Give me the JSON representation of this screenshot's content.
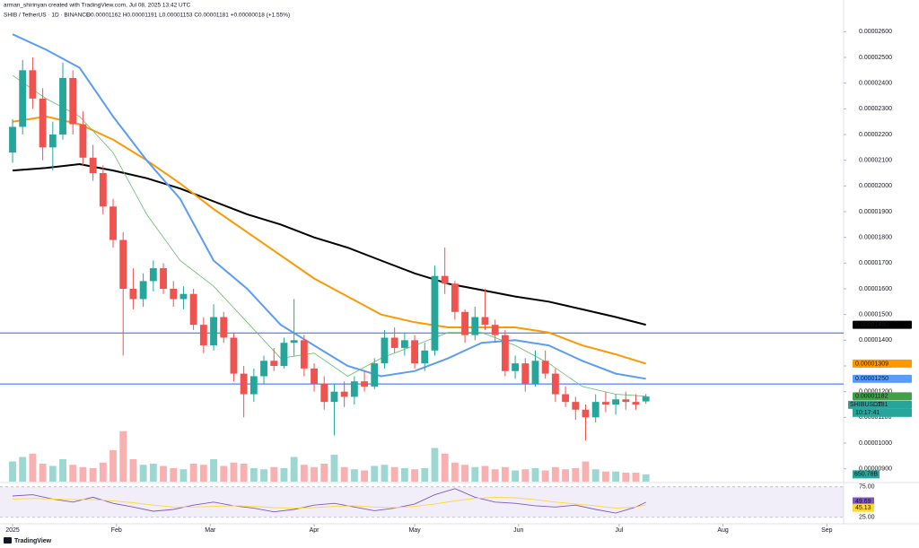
{
  "chart_data": {
    "type": "candlestick",
    "author_line": "arman_shirinyan created with TradingView.com, Jul 08, 2025 13:42 UTC",
    "symbol_line": "SHIB / TetherUS · 1D · BINANCE",
    "ohlc_line": "O0.00001162 H0.00001191 L0.00001153 C0.00001181 +0.00000018 (+1.55%)",
    "footer": "TradingView",
    "up_color": "#26a69a",
    "down_color": "#ef5350",
    "xlim": [
      -3.75,
      248
    ],
    "xticks": [
      {
        "value": 0,
        "label": "2025"
      },
      {
        "value": 31,
        "label": "Feb"
      },
      {
        "value": 59,
        "label": "Mar"
      },
      {
        "value": 90,
        "label": "Apr"
      },
      {
        "value": 120,
        "label": "May"
      },
      {
        "value": 151,
        "label": "Jun"
      },
      {
        "value": 181,
        "label": "Jul"
      },
      {
        "value": 212,
        "label": "Aug"
      },
      {
        "value": 243,
        "label": "Sep"
      }
    ],
    "ylim": [
      8.5e-06,
      2.65e-05
    ],
    "yticks": [
      {
        "value": 9e-06,
        "label": "0.00000900"
      },
      {
        "value": 1e-05,
        "label": "0.00001000"
      },
      {
        "value": 1.1e-05,
        "label": "0.00001100"
      },
      {
        "value": 1.2e-05,
        "label": "0.00001200"
      },
      {
        "value": 1.3e-05,
        "label": "0.00001300"
      },
      {
        "value": 1.4e-05,
        "label": "0.00001400"
      },
      {
        "value": 1.5e-05,
        "label": "0.00001500"
      },
      {
        "value": 1.6e-05,
        "label": "0.00001600"
      },
      {
        "value": 1.7e-05,
        "label": "0.00001700"
      },
      {
        "value": 1.8e-05,
        "label": "0.00001800"
      },
      {
        "value": 1.9e-05,
        "label": "0.00001900"
      },
      {
        "value": 2e-05,
        "label": "0.00002000"
      },
      {
        "value": 2.1e-05,
        "label": "0.00002100"
      },
      {
        "value": 2.2e-05,
        "label": "0.00002200"
      },
      {
        "value": 2.3e-05,
        "label": "0.00002300"
      },
      {
        "value": 2.4e-05,
        "label": "0.00002400"
      },
      {
        "value": 2.5e-05,
        "label": "0.00002500"
      },
      {
        "value": 2.6e-05,
        "label": "0.00002600"
      }
    ],
    "x": [
      0,
      3,
      6,
      9,
      12,
      15,
      18,
      21,
      24,
      27,
      30,
      33,
      36,
      39,
      42,
      45,
      48,
      51,
      54,
      57,
      60,
      63,
      66,
      69,
      72,
      75,
      78,
      81,
      84,
      87,
      90,
      93,
      96,
      99,
      102,
      105,
      108,
      111,
      114,
      117,
      120,
      123,
      126,
      129,
      132,
      135,
      138,
      141,
      144,
      147,
      150,
      153,
      156,
      159,
      162,
      165,
      168,
      171,
      174,
      177,
      180,
      183,
      186,
      189
    ],
    "open": [
      2.13e-05,
      2.23e-05,
      2.45e-05,
      2.34e-05,
      2.15e-05,
      2.2e-05,
      2.42e-05,
      2.24e-05,
      2.11e-05,
      2.05e-05,
      1.92e-05,
      1.79e-05,
      1.6e-05,
      1.56e-05,
      1.63e-05,
      1.68e-05,
      1.6e-05,
      1.56e-05,
      1.58e-05,
      1.46e-05,
      1.38e-05,
      1.49e-05,
      1.41e-05,
      1.27e-05,
      1.19e-05,
      1.26e-05,
      1.32e-05,
      1.3e-05,
      1.39e-05,
      1.4e-05,
      1.29e-05,
      1.23e-05,
      1.16e-05,
      1.2e-05,
      1.18e-05,
      1.24e-05,
      1.22e-05,
      1.31e-05,
      1.41e-05,
      1.37e-05,
      1.4e-05,
      1.31e-05,
      1.36e-05,
      1.65e-05,
      1.62e-05,
      1.51e-05,
      1.42e-05,
      1.49e-05,
      1.46e-05,
      1.42e-05,
      1.28e-05,
      1.31e-05,
      1.23e-05,
      1.32e-05,
      1.27e-05,
      1.19e-05,
      1.16e-05,
      1.13e-05,
      1.1e-05,
      1.16e-05,
      1.15e-05,
      1.17e-05,
      1.16e-05,
      1.162e-05
    ],
    "high": [
      2.26e-05,
      2.49e-05,
      2.5e-05,
      2.38e-05,
      2.25e-05,
      2.48e-05,
      2.45e-05,
      2.29e-05,
      2.16e-05,
      2.08e-05,
      1.95e-05,
      1.82e-05,
      1.68e-05,
      1.66e-05,
      1.71e-05,
      1.7e-05,
      1.63e-05,
      1.61e-05,
      1.6e-05,
      1.49e-05,
      1.54e-05,
      1.51e-05,
      1.43e-05,
      1.3e-05,
      1.29e-05,
      1.34e-05,
      1.37e-05,
      1.41e-05,
      1.56e-05,
      1.42e-05,
      1.31e-05,
      1.26e-05,
      1.23e-05,
      1.24e-05,
      1.26e-05,
      1.28e-05,
      1.33e-05,
      1.44e-05,
      1.45e-05,
      1.43e-05,
      1.42e-05,
      1.39e-05,
      1.69e-05,
      1.76e-05,
      1.63e-05,
      1.52e-05,
      1.53e-05,
      1.6e-05,
      1.48e-05,
      1.44e-05,
      1.34e-05,
      1.33e-05,
      1.36e-05,
      1.36e-05,
      1.29e-05,
      1.22e-05,
      1.18e-05,
      1.15e-05,
      1.19e-05,
      1.2e-05,
      1.19e-05,
      1.2e-05,
      1.19e-05,
      1.191e-05
    ],
    "low": [
      2.09e-05,
      2.2e-05,
      2.3e-05,
      2.1e-05,
      2.06e-05,
      2.18e-05,
      2.2e-05,
      2.08e-05,
      2.02e-05,
      1.89e-05,
      1.76e-05,
      1.34e-05,
      1.52e-05,
      1.53e-05,
      1.59e-05,
      1.58e-05,
      1.53e-05,
      1.52e-05,
      1.44e-05,
      1.35e-05,
      1.36e-05,
      1.39e-05,
      1.24e-05,
      1.1e-05,
      1.16e-05,
      1.23e-05,
      1.28e-05,
      1.29e-05,
      1.34e-05,
      1.26e-05,
      1.2e-05,
      1.13e-05,
      1.03e-05,
      1.14e-05,
      1.15e-05,
      1.2e-05,
      1.21e-05,
      1.29e-05,
      1.35e-05,
      1.34e-05,
      1.29e-05,
      1.28e-05,
      1.34e-05,
      1.58e-05,
      1.48e-05,
      1.39e-05,
      1.4e-05,
      1.44e-05,
      1.39e-05,
      1.26e-05,
      1.25e-05,
      1.2e-05,
      1.22e-05,
      1.25e-05,
      1.16e-05,
      1.14e-05,
      1.09e-05,
      1.01e-05,
      1.08e-05,
      1.12e-05,
      1.11e-05,
      1.13e-05,
      1.13e-05,
      1.153e-05
    ],
    "close": [
      2.23e-05,
      2.45e-05,
      2.34e-05,
      2.15e-05,
      2.2e-05,
      2.42e-05,
      2.24e-05,
      2.11e-05,
      2.05e-05,
      1.92e-05,
      1.79e-05,
      1.6e-05,
      1.56e-05,
      1.63e-05,
      1.68e-05,
      1.6e-05,
      1.56e-05,
      1.58e-05,
      1.46e-05,
      1.38e-05,
      1.49e-05,
      1.41e-05,
      1.27e-05,
      1.19e-05,
      1.26e-05,
      1.32e-05,
      1.3e-05,
      1.39e-05,
      1.4e-05,
      1.29e-05,
      1.23e-05,
      1.16e-05,
      1.2e-05,
      1.18e-05,
      1.24e-05,
      1.22e-05,
      1.31e-05,
      1.41e-05,
      1.37e-05,
      1.4e-05,
      1.31e-05,
      1.36e-05,
      1.65e-05,
      1.62e-05,
      1.51e-05,
      1.42e-05,
      1.49e-05,
      1.46e-05,
      1.42e-05,
      1.28e-05,
      1.31e-05,
      1.23e-05,
      1.32e-05,
      1.27e-05,
      1.19e-05,
      1.16e-05,
      1.13e-05,
      1.1e-05,
      1.16e-05,
      1.15e-05,
      1.17e-05,
      1.16e-05,
      1.15e-05,
      1.181e-05
    ],
    "volume": [
      1800,
      2200,
      2500,
      1600,
      1400,
      2000,
      1500,
      1300,
      1200,
      1700,
      2800,
      4500,
      2000,
      1500,
      1600,
      1400,
      1200,
      1100,
      1600,
      1500,
      2000,
      1400,
      1700,
      1600,
      1200,
      1100,
      1300,
      1200,
      2200,
      1500,
      1300,
      1600,
      2400,
      1300,
      1100,
      1000,
      1400,
      1500,
      1300,
      1200,
      1100,
      1200,
      3000,
      2500,
      1700,
      1500,
      1300,
      1400,
      1100,
      1300,
      1000,
      1100,
      1200,
      1000,
      1300,
      1100,
      1200,
      1800,
      1100,
      900,
      900,
      800,
      800,
      650.78
    ],
    "volume_last_label": "650.78B",
    "volume_ylim": [
      0,
      4800
    ],
    "hlines": [
      1.428e-05,
      1.23e-05
    ],
    "hline_color": "#2962ff",
    "moving_averages": {
      "x": [
        0,
        10,
        20,
        30,
        40,
        50,
        60,
        70,
        80,
        90,
        100,
        110,
        120,
        130,
        140,
        150,
        160,
        170,
        180,
        189
      ],
      "series": [
        {
          "color": "#000000",
          "values": [
            2.06e-05,
            2.07e-05,
            2.085e-05,
            2.06e-05,
            2.03e-05,
            1.99e-05,
            1.94e-05,
            1.89e-05,
            1.85e-05,
            1.8e-05,
            1.76e-05,
            1.71e-05,
            1.66e-05,
            1.62e-05,
            1.595e-05,
            1.57e-05,
            1.55e-05,
            1.52e-05,
            1.49e-05,
            1.46e-05
          ]
        },
        {
          "color": "#ff9800",
          "values": [
            2.25e-05,
            2.27e-05,
            2.24e-05,
            2.18e-05,
            2.1e-05,
            2.01e-05,
            1.91e-05,
            1.82e-05,
            1.73e-05,
            1.64e-05,
            1.57e-05,
            1.5e-05,
            1.47e-05,
            1.45e-05,
            1.45e-05,
            1.45e-05,
            1.43e-05,
            1.38e-05,
            1.345e-05,
            1.309e-05
          ]
        },
        {
          "color": "#5b9cf6",
          "values": [
            2.59e-05,
            2.53e-05,
            2.46e-05,
            2.27e-05,
            2.1e-05,
            1.95e-05,
            1.71e-05,
            1.6e-05,
            1.46e-05,
            1.38e-05,
            1.3e-05,
            1.26e-05,
            1.28e-05,
            1.33e-05,
            1.39e-05,
            1.4e-05,
            1.38e-05,
            1.32e-05,
            1.27e-05,
            1.25e-05
          ]
        },
        {
          "color": "#66bb6a",
          "values": [
            2.43e-05,
            2.34e-05,
            2.27e-05,
            2.13e-05,
            1.89e-05,
            1.71e-05,
            1.61e-05,
            1.47e-05,
            1.33e-05,
            1.35e-05,
            1.26e-05,
            1.33e-05,
            1.38e-05,
            1.43e-05,
            1.43e-05,
            1.38e-05,
            1.31e-05,
            1.22e-05,
            1.19e-05,
            1.182e-05
          ]
        }
      ]
    },
    "price_tags": [
      {
        "value": 1.46e-05,
        "label": "0.00001460",
        "color": "#000000"
      },
      {
        "value": 1.309e-05,
        "label": "0.00001309",
        "color": "#ff9800"
      },
      {
        "value": 1.25e-05,
        "label": "0.00001250",
        "color": "#5b9cf6"
      },
      {
        "value": 1.182e-05,
        "label": "0.00001182",
        "color": "#43a047"
      },
      {
        "value": 1.181e-05,
        "label": "0.00001181",
        "color": "#26a69a"
      }
    ],
    "symbol_tag": "SHIBUSDT",
    "countdown": "10:17:41",
    "rsi": {
      "x": [
        0,
        6,
        12,
        18,
        24,
        30,
        36,
        42,
        48,
        54,
        60,
        66,
        72,
        78,
        84,
        90,
        96,
        102,
        108,
        114,
        120,
        126,
        132,
        138,
        144,
        150,
        156,
        162,
        168,
        174,
        180,
        186,
        189
      ],
      "ylim": [
        16,
        82
      ],
      "yticks": [
        {
          "value": 75,
          "label": "75.00"
        },
        {
          "value": 25,
          "label": "25.00"
        }
      ],
      "series": [
        {
          "color": "#7e57c2",
          "last_label": "49.69",
          "values": [
            60,
            62,
            55,
            50,
            58,
            48,
            42,
            35,
            38,
            45,
            50,
            44,
            40,
            34,
            38,
            45,
            48,
            42,
            36,
            40,
            47,
            62,
            72,
            58,
            50,
            48,
            44,
            42,
            45,
            38,
            32,
            42,
            49.69
          ]
        },
        {
          "color": "#fdd835",
          "last_label": "45.13",
          "values": [
            55,
            56,
            55,
            54,
            54,
            52,
            49,
            45,
            42,
            42,
            43,
            44,
            43,
            41,
            40,
            41,
            43,
            44,
            42,
            41,
            43,
            47,
            52,
            56,
            58,
            57,
            54,
            50,
            47,
            44,
            40,
            42,
            45.13
          ]
        }
      ]
    }
  }
}
